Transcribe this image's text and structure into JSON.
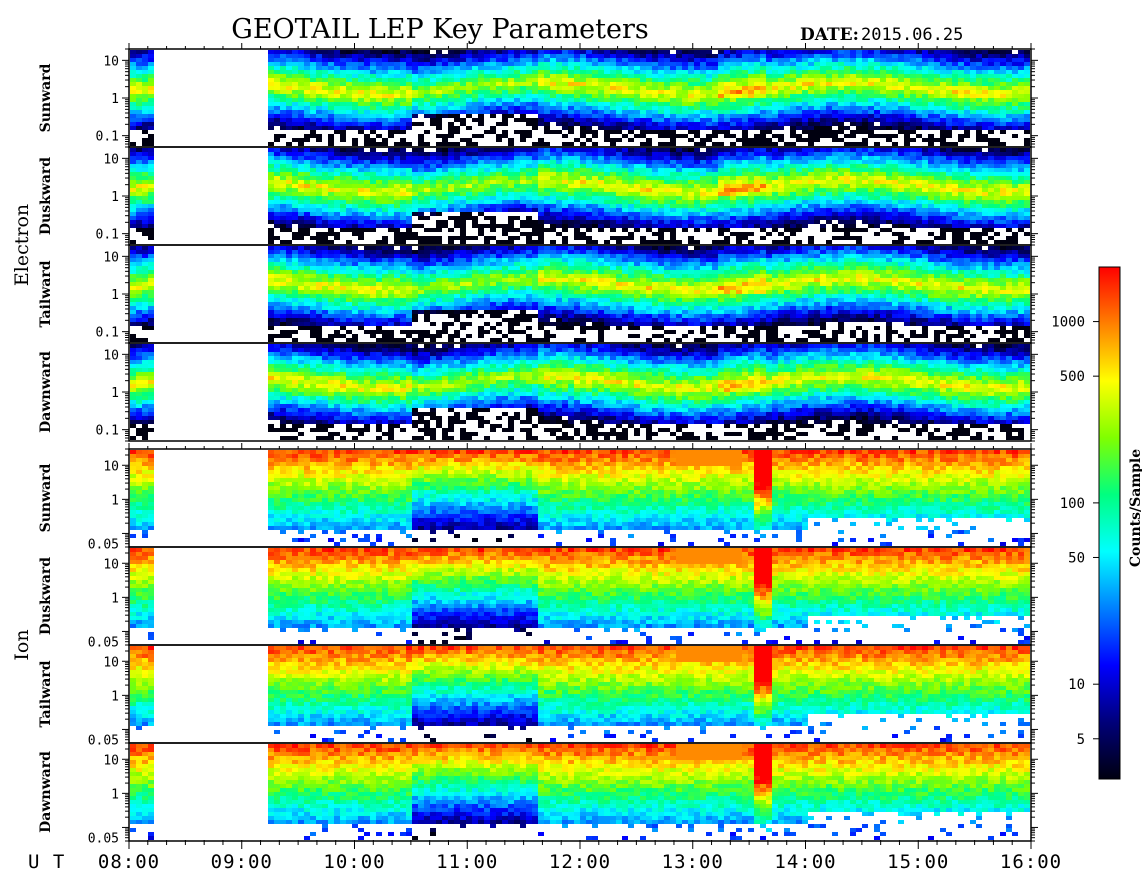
{
  "title": "GEOTAIL LEP Key Parameters",
  "date_label": "DATE:",
  "date_value": "2015.06.25",
  "ut_label": "U T",
  "colorbar_label": "Counts/Sample",
  "colormap": [
    "#000010",
    "#00007a",
    "#0000ff",
    "#0080ff",
    "#00ffff",
    "#00ff80",
    "#80ff00",
    "#ffff00",
    "#ff8000",
    "#ff0000"
  ],
  "chart_data": {
    "type": "heatmap",
    "x_axis": {
      "label": "U T",
      "range": [
        "08:00",
        "16:00"
      ],
      "ticks": [
        "08:00",
        "09:00",
        "10:00",
        "11:00",
        "12:00",
        "13:00",
        "14:00",
        "15:00",
        "16:00"
      ]
    },
    "colorbar": {
      "label": "Counts/Sample",
      "scale": "log",
      "range": [
        3,
        2000
      ],
      "ticks": [
        "5",
        "10",
        "50",
        "100",
        "500",
        "1000"
      ]
    },
    "data_gaps": [
      [
        "08:13",
        "09:13"
      ]
    ],
    "groups": [
      {
        "name": "Electron",
        "y_scale": "log",
        "y_range": [
          0.05,
          20
        ],
        "y_ticks": [
          "10",
          "1",
          "0.1"
        ],
        "panels": [
          "Sunward",
          "Duskward",
          "Tailward",
          "Dawnward"
        ]
      },
      {
        "name": "Ion",
        "y_scale": "log",
        "y_range": [
          0.04,
          30
        ],
        "y_ticks": [
          "10",
          "1",
          "0.05"
        ],
        "panels": [
          "Sunward",
          "Duskward",
          "Tailward",
          "Dawnward"
        ]
      }
    ]
  }
}
